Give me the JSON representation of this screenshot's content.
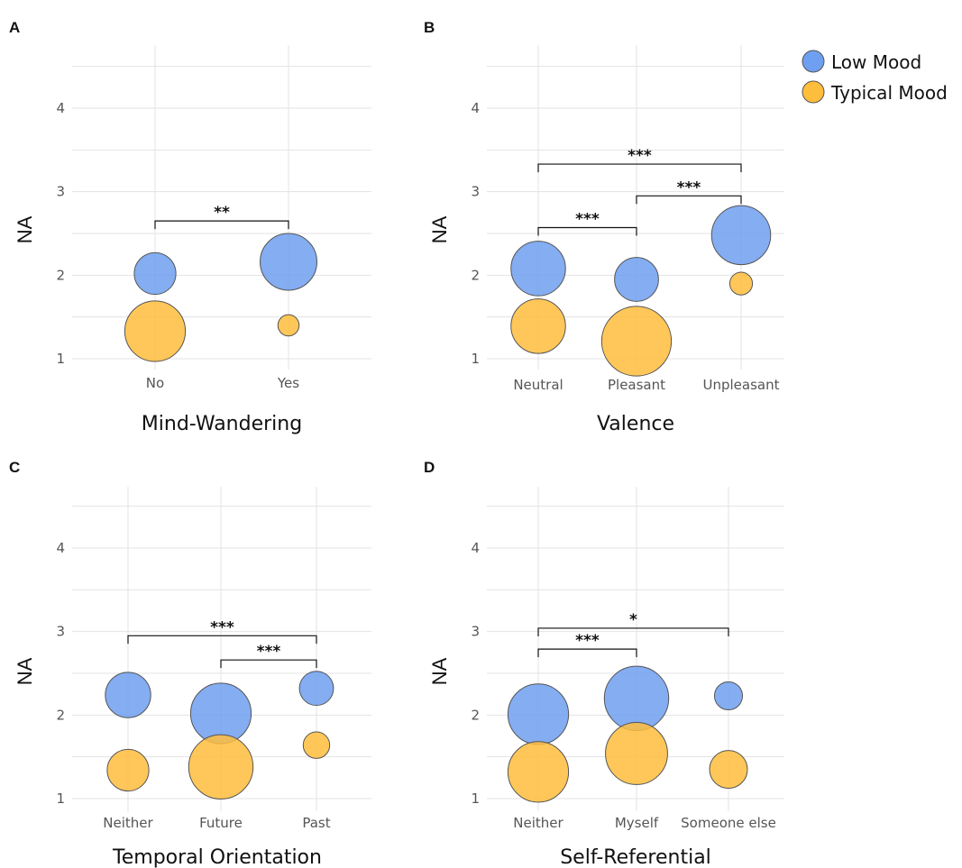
{
  "legend": {
    "items": [
      {
        "label": "Low Mood",
        "color": "#6f9ff0"
      },
      {
        "label": "Typical Mood",
        "color": "#ffbd3c"
      }
    ]
  },
  "chart_data": [
    {
      "type": "scatter",
      "panel": "A",
      "xlabel": "Mind-Wandering",
      "ylabel": "NA",
      "categories": [
        "No",
        "Yes"
      ],
      "ylim": [
        0.8,
        4.5
      ],
      "yticks": [
        1,
        2,
        3,
        4
      ],
      "series": [
        {
          "name": "Low Mood",
          "color": "#6f9ff0",
          "values": [
            2.02,
            2.16
          ],
          "size": [
            0.55,
            0.75
          ]
        },
        {
          "name": "Typical Mood",
          "color": "#ffbd3c",
          "values": [
            1.33,
            1.4
          ],
          "size": [
            0.8,
            0.28
          ]
        }
      ],
      "significance": [
        {
          "from": 0,
          "to": 1,
          "y": 2.65,
          "label": "**"
        }
      ]
    },
    {
      "type": "scatter",
      "panel": "B",
      "xlabel": "Valence",
      "ylabel": "NA",
      "categories": [
        "Neutral",
        "Pleasant",
        "Unpleasant"
      ],
      "ylim": [
        0.8,
        4.5
      ],
      "yticks": [
        1,
        2,
        3,
        4
      ],
      "series": [
        {
          "name": "Low Mood",
          "color": "#6f9ff0",
          "values": [
            2.08,
            1.95,
            2.48
          ],
          "size": [
            0.72,
            0.58,
            0.78
          ]
        },
        {
          "name": "Typical Mood",
          "color": "#ffbd3c",
          "values": [
            1.39,
            1.21,
            1.9
          ],
          "size": [
            0.72,
            0.92,
            0.3
          ]
        }
      ],
      "significance": [
        {
          "from": 0,
          "to": 2,
          "y": 3.33,
          "label": "***"
        },
        {
          "from": 1,
          "to": 2,
          "y": 2.95,
          "label": "***"
        },
        {
          "from": 0,
          "to": 1,
          "y": 2.57,
          "label": "***"
        }
      ]
    },
    {
      "type": "scatter",
      "panel": "C",
      "xlabel": "Temporal Orientation",
      "ylabel": "NA",
      "categories": [
        "Neither",
        "Future",
        "Past"
      ],
      "ylim": [
        0.8,
        4.5
      ],
      "yticks": [
        1,
        2,
        3,
        4
      ],
      "series": [
        {
          "name": "Low Mood",
          "color": "#6f9ff0",
          "values": [
            2.24,
            2.02,
            2.32
          ],
          "size": [
            0.6,
            0.8,
            0.45
          ]
        },
        {
          "name": "Typical Mood",
          "color": "#ffbd3c",
          "values": [
            1.34,
            1.38,
            1.64
          ],
          "size": [
            0.55,
            0.85,
            0.35
          ]
        }
      ],
      "significance": [
        {
          "from": 0,
          "to": 2,
          "y": 2.95,
          "label": "***"
        },
        {
          "from": 1,
          "to": 2,
          "y": 2.66,
          "label": "***"
        }
      ]
    },
    {
      "type": "scatter",
      "panel": "D",
      "xlabel": "Self-Referential",
      "ylabel": "NA",
      "categories": [
        "Neither",
        "Myself",
        "Someone else"
      ],
      "ylim": [
        0.8,
        4.5
      ],
      "yticks": [
        1,
        2,
        3,
        4
      ],
      "series": [
        {
          "name": "Low Mood",
          "color": "#6f9ff0",
          "values": [
            2.01,
            2.2,
            2.23
          ],
          "size": [
            0.8,
            0.85,
            0.37
          ]
        },
        {
          "name": "Typical Mood",
          "color": "#ffbd3c",
          "values": [
            1.32,
            1.54,
            1.35
          ],
          "size": [
            0.8,
            0.82,
            0.5
          ]
        }
      ],
      "significance": [
        {
          "from": 0,
          "to": 2,
          "y": 3.04,
          "label": "*"
        },
        {
          "from": 0,
          "to": 1,
          "y": 2.79,
          "label": "***"
        }
      ]
    }
  ]
}
